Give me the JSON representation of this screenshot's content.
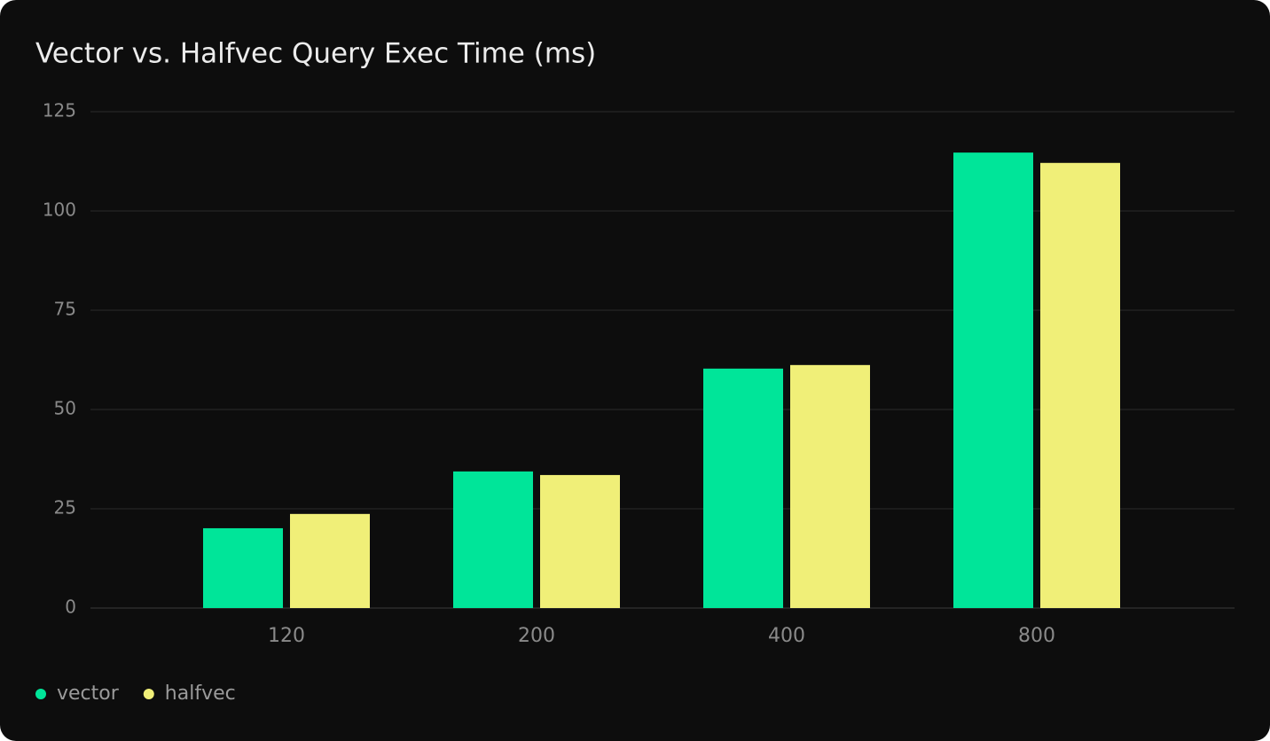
{
  "chart_data": {
    "type": "bar",
    "title": "Vector vs. Halfvec Query Exec Time (ms)",
    "categories": [
      "120",
      "200",
      "400",
      "800"
    ],
    "series": [
      {
        "name": "vector",
        "color": "#00e599",
        "values": [
          20.1,
          34.4,
          60.3,
          114.7
        ]
      },
      {
        "name": "halfvec",
        "color": "#f0ef78",
        "values": [
          23.7,
          33.5,
          61.2,
          112.1
        ]
      }
    ],
    "ylim": [
      0,
      125
    ],
    "yticks": [
      0,
      25,
      50,
      75,
      100,
      125
    ],
    "grid": true,
    "legend": "bottom-left"
  }
}
